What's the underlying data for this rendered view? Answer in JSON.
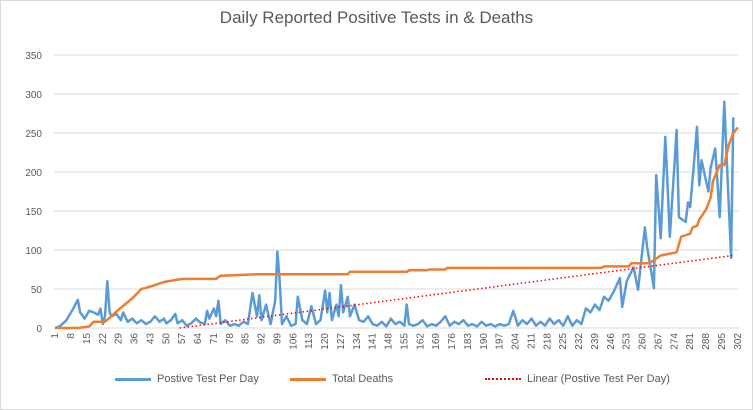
{
  "chart_data": {
    "type": "line",
    "title": "Daily Reported Positive Tests in & Deaths",
    "xlabel": "",
    "ylabel": "",
    "x_range": [
      1,
      302
    ],
    "x_tick_step": 7,
    "ylim": [
      0,
      350
    ],
    "y_ticks": [
      0,
      50,
      100,
      150,
      200,
      250,
      300,
      350
    ],
    "grid": "horizontal",
    "legend_position": "bottom",
    "colors": {
      "positive": "#5b9bd5",
      "deaths": "#ed7d31",
      "trend": "#ff0000",
      "grid": "#d9d9d9",
      "text": "#595959"
    },
    "series": [
      {
        "name": "Postive Test Per Day",
        "style": "solid",
        "points": [
          [
            1,
            0
          ],
          [
            3,
            2
          ],
          [
            6,
            10
          ],
          [
            9,
            25
          ],
          [
            11,
            36
          ],
          [
            12,
            20
          ],
          [
            14,
            12
          ],
          [
            16,
            22
          ],
          [
            18,
            20
          ],
          [
            20,
            17
          ],
          [
            21,
            25
          ],
          [
            22,
            5
          ],
          [
            23,
            15
          ],
          [
            24,
            60
          ],
          [
            25,
            20
          ],
          [
            26,
            15
          ],
          [
            28,
            18
          ],
          [
            30,
            10
          ],
          [
            31,
            20
          ],
          [
            33,
            8
          ],
          [
            35,
            12
          ],
          [
            37,
            6
          ],
          [
            39,
            10
          ],
          [
            41,
            5
          ],
          [
            43,
            8
          ],
          [
            45,
            15
          ],
          [
            47,
            8
          ],
          [
            49,
            12
          ],
          [
            50,
            6
          ],
          [
            52,
            10
          ],
          [
            54,
            18
          ],
          [
            55,
            6
          ],
          [
            57,
            10
          ],
          [
            59,
            3
          ],
          [
            61,
            6
          ],
          [
            63,
            12
          ],
          [
            65,
            7
          ],
          [
            67,
            5
          ],
          [
            68,
            22
          ],
          [
            69,
            12
          ],
          [
            71,
            25
          ],
          [
            72,
            15
          ],
          [
            73,
            35
          ],
          [
            74,
            5
          ],
          [
            76,
            10
          ],
          [
            78,
            3
          ],
          [
            80,
            5
          ],
          [
            82,
            3
          ],
          [
            84,
            8
          ],
          [
            86,
            5
          ],
          [
            88,
            45
          ],
          [
            90,
            15
          ],
          [
            91,
            42
          ],
          [
            92,
            10
          ],
          [
            94,
            30
          ],
          [
            96,
            5
          ],
          [
            98,
            35
          ],
          [
            99,
            98
          ],
          [
            100,
            60
          ],
          [
            101,
            5
          ],
          [
            103,
            15
          ],
          [
            105,
            3
          ],
          [
            107,
            5
          ],
          [
            108,
            40
          ],
          [
            110,
            10
          ],
          [
            112,
            5
          ],
          [
            114,
            28
          ],
          [
            116,
            5
          ],
          [
            118,
            10
          ],
          [
            120,
            48
          ],
          [
            121,
            20
          ],
          [
            122,
            45
          ],
          [
            123,
            10
          ],
          [
            125,
            30
          ],
          [
            126,
            15
          ],
          [
            127,
            55
          ],
          [
            128,
            20
          ],
          [
            130,
            40
          ],
          [
            131,
            15
          ],
          [
            133,
            30
          ],
          [
            135,
            10
          ],
          [
            137,
            8
          ],
          [
            139,
            15
          ],
          [
            141,
            5
          ],
          [
            143,
            3
          ],
          [
            145,
            8
          ],
          [
            147,
            2
          ],
          [
            149,
            12
          ],
          [
            151,
            5
          ],
          [
            153,
            8
          ],
          [
            155,
            3
          ],
          [
            156,
            30
          ],
          [
            157,
            5
          ],
          [
            159,
            3
          ],
          [
            161,
            5
          ],
          [
            163,
            10
          ],
          [
            165,
            2
          ],
          [
            167,
            5
          ],
          [
            169,
            3
          ],
          [
            171,
            8
          ],
          [
            173,
            15
          ],
          [
            175,
            3
          ],
          [
            177,
            8
          ],
          [
            179,
            5
          ],
          [
            181,
            10
          ],
          [
            183,
            3
          ],
          [
            185,
            5
          ],
          [
            187,
            2
          ],
          [
            189,
            8
          ],
          [
            191,
            3
          ],
          [
            193,
            5
          ],
          [
            195,
            2
          ],
          [
            197,
            5
          ],
          [
            199,
            3
          ],
          [
            201,
            5
          ],
          [
            203,
            22
          ],
          [
            205,
            3
          ],
          [
            207,
            10
          ],
          [
            209,
            5
          ],
          [
            211,
            12
          ],
          [
            213,
            3
          ],
          [
            215,
            8
          ],
          [
            217,
            3
          ],
          [
            219,
            12
          ],
          [
            221,
            5
          ],
          [
            223,
            10
          ],
          [
            225,
            3
          ],
          [
            227,
            15
          ],
          [
            229,
            3
          ],
          [
            231,
            10
          ],
          [
            233,
            5
          ],
          [
            235,
            25
          ],
          [
            237,
            20
          ],
          [
            239,
            30
          ],
          [
            241,
            23
          ],
          [
            243,
            40
          ],
          [
            245,
            35
          ],
          [
            247,
            45
          ],
          [
            250,
            64
          ],
          [
            251,
            27
          ],
          [
            253,
            60
          ],
          [
            256,
            78
          ],
          [
            258,
            49
          ],
          [
            261,
            129
          ],
          [
            262,
            104
          ],
          [
            265,
            51
          ],
          [
            266,
            196
          ],
          [
            268,
            115
          ],
          [
            270,
            245
          ],
          [
            272,
            117
          ],
          [
            275,
            254
          ],
          [
            276,
            142
          ],
          [
            279,
            136
          ],
          [
            280,
            161
          ],
          [
            281,
            155
          ],
          [
            284,
            258
          ],
          [
            285,
            183
          ],
          [
            286,
            215
          ],
          [
            289,
            175
          ],
          [
            290,
            205
          ],
          [
            292,
            230
          ],
          [
            294,
            142
          ],
          [
            296,
            290
          ],
          [
            299,
            90
          ],
          [
            300,
            270
          ]
        ]
      },
      {
        "name": "Total Deaths",
        "style": "solid",
        "points": [
          [
            1,
            0
          ],
          [
            11,
            0
          ],
          [
            16,
            2
          ],
          [
            18,
            8
          ],
          [
            23,
            8
          ],
          [
            30,
            26
          ],
          [
            35,
            38
          ],
          [
            39,
            50
          ],
          [
            44,
            54
          ],
          [
            49,
            59
          ],
          [
            57,
            63
          ],
          [
            72,
            63
          ],
          [
            74,
            67
          ],
          [
            91,
            69
          ],
          [
            130,
            69
          ],
          [
            131,
            72
          ],
          [
            156,
            72
          ],
          [
            157,
            74
          ],
          [
            165,
            74
          ],
          [
            166,
            75
          ],
          [
            173,
            75
          ],
          [
            174,
            77
          ],
          [
            242,
            77
          ],
          [
            243,
            79
          ],
          [
            254,
            79
          ],
          [
            255,
            83
          ],
          [
            263,
            83
          ],
          [
            265,
            87
          ],
          [
            268,
            93
          ],
          [
            275,
            97
          ],
          [
            277,
            117
          ],
          [
            281,
            121
          ],
          [
            282,
            129
          ],
          [
            284,
            131
          ],
          [
            285,
            139
          ],
          [
            288,
            152
          ],
          [
            290,
            167
          ],
          [
            291,
            188
          ],
          [
            294,
            209
          ],
          [
            296,
            209
          ],
          [
            298,
            235
          ],
          [
            300,
            250
          ],
          [
            302,
            257
          ]
        ]
      },
      {
        "name": "Linear (Postive Test Per Day)",
        "style": "dotted",
        "slope": 0.381,
        "intercept": -21.3
      }
    ]
  }
}
